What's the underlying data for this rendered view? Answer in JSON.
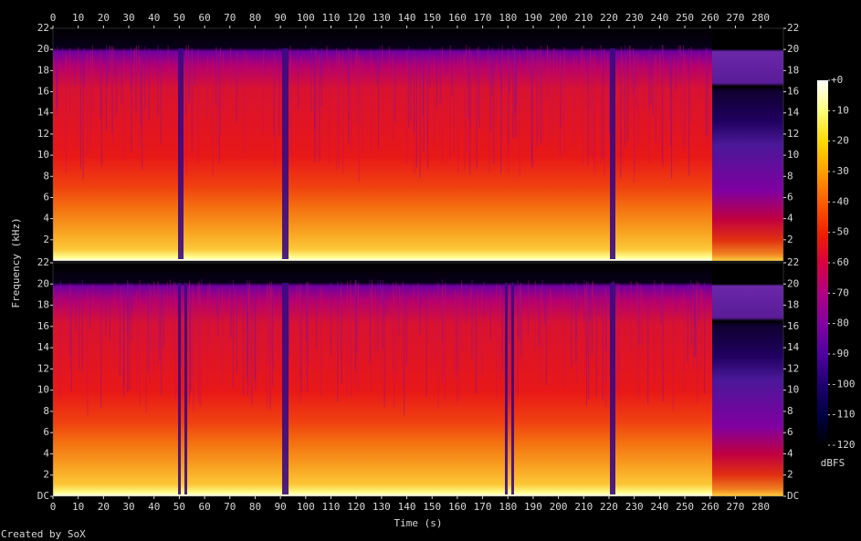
{
  "chart_data": {
    "type": "spectrogram",
    "xlabel": "Time (s)",
    "ylabel": "Frequency (kHz)",
    "xlim": [
      0,
      289
    ],
    "xticks": [
      0,
      10,
      20,
      30,
      40,
      50,
      60,
      70,
      80,
      90,
      100,
      110,
      120,
      130,
      140,
      150,
      160,
      170,
      180,
      190,
      200,
      210,
      220,
      230,
      240,
      250,
      260,
      270,
      280
    ],
    "panels": [
      {
        "ylim": [
          0,
          22
        ],
        "yticks": [
          2,
          4,
          6,
          8,
          10,
          12,
          14,
          16,
          18,
          20,
          22
        ]
      },
      {
        "ylim": [
          0,
          22
        ],
        "yticks": [
          {
            "value": 0,
            "label": "DC"
          },
          2,
          4,
          6,
          8,
          10,
          12,
          14,
          16,
          18,
          20,
          22
        ]
      }
    ],
    "colorbar": {
      "label": "dBFS",
      "lim": [
        -120,
        0
      ],
      "ticks": [
        {
          "value": 0,
          "label": "+0"
        },
        -10,
        -20,
        -30,
        -40,
        -50,
        -60,
        -70,
        -80,
        -90,
        -100,
        -110,
        -120
      ]
    },
    "credit": "Created by SoX"
  }
}
